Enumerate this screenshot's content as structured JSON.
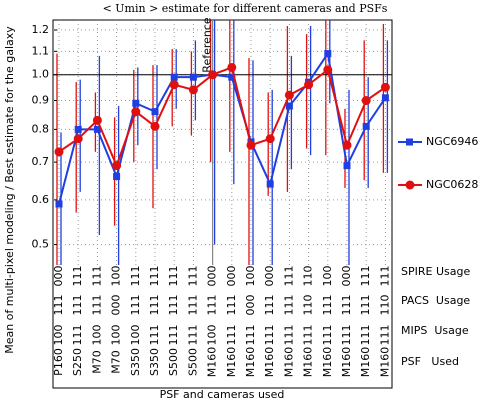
{
  "chart_data": {
    "type": "line",
    "title": "< Umin > estimate for different cameras and PSFs",
    "ylabel": "Mean of multi-pixel modeling / Best estimate for the galaxy",
    "xlabel": "PSF and cameras used",
    "annotation": "Reference",
    "reference_line": 1,
    "log_scale": true,
    "grid": true,
    "ylim": [
      0.46,
      1.25
    ],
    "yticks": [
      0.5,
      0.6,
      0.7,
      0.8,
      0.9,
      {
        "value": 1,
        "label": "1.0"
      },
      1.1,
      1.2
    ],
    "categories": [
      "P160",
      "S250",
      "M70",
      "M70",
      "S350",
      "S350",
      "S500",
      "S500",
      "M160",
      "M160",
      "M160",
      "M160",
      "M160",
      "M160",
      "M160",
      "M160",
      "M160",
      "M160"
    ],
    "rows": [
      {
        "name": "SPIRE Usage",
        "values": [
          "000",
          "111",
          "111",
          "100",
          "111",
          "111",
          "111",
          "111",
          "000",
          "000",
          "100",
          "000",
          "111",
          "110",
          "100",
          "000",
          "111",
          "111"
        ]
      },
      {
        "name": "PACS  Usage",
        "values": [
          "111",
          "111",
          "111",
          "000",
          "111",
          "111",
          "111",
          "111",
          "111",
          "111",
          "000",
          "111",
          "111",
          "110",
          "111",
          "111",
          "111",
          "110"
        ]
      },
      {
        "name": "MIPS  Usage",
        "values": [
          "100",
          "111",
          "100",
          "100",
          "100",
          "111",
          "111",
          "111",
          "100",
          "111",
          "111",
          "111",
          "111",
          "111",
          "111",
          "111",
          "111",
          "111"
        ]
      }
    ],
    "row_label": "PSF   Used",
    "series": [
      {
        "name": "NGC6946",
        "color": "#1f3fe0",
        "marker": "square",
        "values": [
          0.59,
          0.8,
          0.8,
          0.66,
          0.89,
          0.86,
          0.99,
          0.99,
          1.0,
          0.99,
          0.76,
          0.64,
          0.88,
          0.97,
          1.09,
          0.69,
          0.81,
          0.91
        ],
        "errors": [
          0.2,
          0.18,
          0.28,
          0.22,
          0.14,
          0.18,
          0.12,
          0.16,
          0.5,
          0.35,
          0.3,
          0.3,
          0.2,
          0.25,
          0.2,
          0.25,
          0.18,
          0.24
        ]
      },
      {
        "name": "NGC0628",
        "color": "#e01010",
        "marker": "circle",
        "values": [
          0.73,
          0.77,
          0.83,
          0.69,
          0.86,
          0.81,
          0.96,
          0.94,
          1.0,
          1.03,
          0.75,
          0.77,
          0.92,
          0.96,
          1.02,
          0.75,
          0.9,
          0.95
        ],
        "errors": [
          0.36,
          0.2,
          0.1,
          0.15,
          0.16,
          0.23,
          0.15,
          0.16,
          0.3,
          0.3,
          0.32,
          0.16,
          0.3,
          0.22,
          0.3,
          0.12,
          0.25,
          0.28
        ]
      }
    ]
  }
}
